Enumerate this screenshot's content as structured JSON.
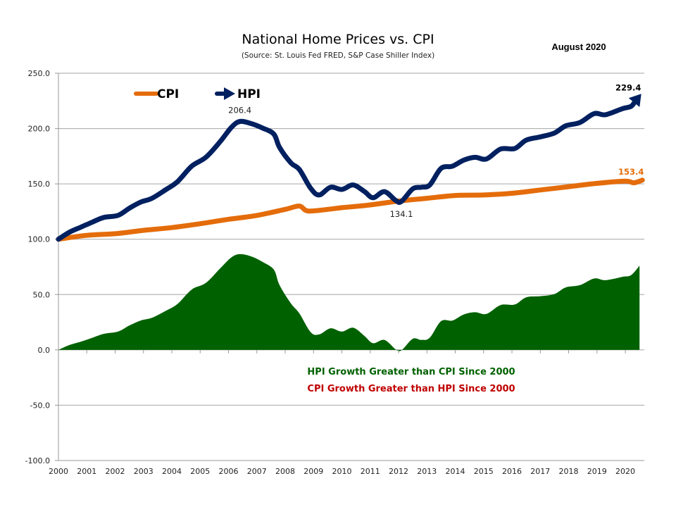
{
  "chart_data": {
    "type": "line",
    "title": "National Home Prices vs. CPI",
    "subtitle": "(Source: St. Louis Fed FRED, S&P Case Shiller Index)",
    "date_label": "August 2020",
    "xlabel": "",
    "ylabel": "",
    "ylim": [
      -100,
      250
    ],
    "xlim": [
      2000,
      2020.67
    ],
    "grid": true,
    "y_ticks": [
      250,
      200,
      150,
      100,
      50,
      0,
      -50,
      -100
    ],
    "y_tick_labels": [
      "250.0",
      "200.0",
      "150.0",
      "100.0",
      "50.0",
      "0.0",
      "-50.0",
      "-100.0"
    ],
    "x_tick_labels": [
      "2000",
      "2001",
      "2002",
      "2003",
      "2004",
      "2005",
      "2006",
      "2007",
      "2008",
      "2009",
      "2010",
      "2011",
      "2012",
      "2013",
      "2014",
      "2015",
      "2016",
      "2017",
      "2018",
      "2019",
      "2020"
    ],
    "legend": {
      "placement": "top-left",
      "entries": [
        {
          "name": "CPI",
          "color": "#E46C0A",
          "marker": "line"
        },
        {
          "name": "HPI",
          "color": "#002060",
          "marker": "arrow"
        }
      ]
    },
    "series": [
      {
        "name": "HPI",
        "color": "#002060",
        "type": "line",
        "x": [
          2000.0,
          2000.4,
          2000.8,
          2001.2,
          2001.6,
          2002.1,
          2002.5,
          2002.9,
          2003.3,
          2003.8,
          2004.2,
          2004.7,
          2005.2,
          2005.7,
          2006.1,
          2006.4,
          2006.8,
          2007.2,
          2007.6,
          2007.8,
          2008.2,
          2008.5,
          2008.9,
          2009.2,
          2009.6,
          2010.0,
          2010.4,
          2010.8,
          2011.1,
          2011.5,
          2011.9,
          2012.1,
          2012.5,
          2012.8,
          2013.1,
          2013.5,
          2013.9,
          2014.3,
          2014.7,
          2015.1,
          2015.6,
          2016.1,
          2016.5,
          2017.0,
          2017.5,
          2017.9,
          2018.4,
          2018.9,
          2019.3,
          2019.9,
          2020.2,
          2020.5
        ],
        "values": [
          100.0,
          106.5,
          111.0,
          115.5,
          119.7,
          121.5,
          128.0,
          133.5,
          137.0,
          145.0,
          152.0,
          166.0,
          174.0,
          188.0,
          201.0,
          206.4,
          204.5,
          200.5,
          195.0,
          183.0,
          169.0,
          163.0,
          146.0,
          140.0,
          147.0,
          145.0,
          149.0,
          143.0,
          137.5,
          143.0,
          135.0,
          134.1,
          145.5,
          147.0,
          149.0,
          164.0,
          166.0,
          171.5,
          174.0,
          172.5,
          181.5,
          182.0,
          189.5,
          192.5,
          196.0,
          202.5,
          205.5,
          213.5,
          212.5,
          218.0,
          220.0,
          229.4
        ]
      },
      {
        "name": "CPI",
        "color": "#E46C0A",
        "type": "line",
        "x": [
          2000.0,
          2001.0,
          2002.0,
          2003.0,
          2004.0,
          2005.0,
          2006.0,
          2007.0,
          2008.0,
          2008.5,
          2008.8,
          2009.5,
          2010.0,
          2011.0,
          2012.0,
          2013.0,
          2014.0,
          2015.0,
          2016.0,
          2017.0,
          2018.0,
          2019.0,
          2020.0,
          2020.3,
          2020.6
        ],
        "values": [
          100.0,
          103.5,
          105.0,
          108.0,
          110.5,
          114.0,
          118.0,
          121.5,
          127.0,
          130.0,
          125.5,
          127.0,
          128.5,
          131.0,
          134.5,
          137.0,
          139.5,
          140.0,
          141.5,
          144.5,
          147.5,
          150.5,
          152.5,
          151.0,
          153.4
        ]
      },
      {
        "name": "HPI Growth minus CPI Growth",
        "color": "#006100",
        "type": "area",
        "x": [
          2000.0,
          2000.4,
          2000.8,
          2001.2,
          2001.6,
          2002.1,
          2002.5,
          2002.9,
          2003.3,
          2003.8,
          2004.2,
          2004.7,
          2005.2,
          2005.7,
          2006.1,
          2006.4,
          2006.8,
          2007.2,
          2007.6,
          2007.8,
          2008.2,
          2008.5,
          2008.9,
          2009.2,
          2009.6,
          2010.0,
          2010.4,
          2010.8,
          2011.1,
          2011.5,
          2011.9,
          2012.1,
          2012.5,
          2012.8,
          2013.1,
          2013.5,
          2013.9,
          2014.3,
          2014.7,
          2015.1,
          2015.6,
          2016.1,
          2016.5,
          2017.0,
          2017.5,
          2017.9,
          2018.4,
          2018.9,
          2019.3,
          2019.9,
          2020.2,
          2020.5
        ],
        "values": [
          0.0,
          4.5,
          7.5,
          11.0,
          14.5,
          16.5,
          22.0,
          26.5,
          29.0,
          35.5,
          41.5,
          54.5,
          60.5,
          73.5,
          83.5,
          86.5,
          84.5,
          79.5,
          72.5,
          58.5,
          42.0,
          33.0,
          16.0,
          14.0,
          19.5,
          16.5,
          20.0,
          12.5,
          6.0,
          9.0,
          0.5,
          -0.4,
          10.0,
          9.0,
          11.0,
          26.0,
          26.5,
          32.0,
          34.0,
          32.5,
          40.5,
          41.0,
          47.5,
          48.5,
          50.5,
          56.5,
          58.5,
          64.5,
          63.0,
          66.0,
          67.5,
          76.0
        ]
      }
    ],
    "annotations": [
      {
        "text": "206.4",
        "series": "HPI",
        "x": 2006.4,
        "y": 206.4,
        "position": "above"
      },
      {
        "text": "134.1",
        "series": "HPI",
        "x": 2012.1,
        "y": 134.1,
        "position": "below"
      },
      {
        "text": "229.4",
        "series": "HPI",
        "x": 2020.5,
        "y": 229.4,
        "position": "above-left",
        "color": "#000000"
      },
      {
        "text": "153.4",
        "series": "CPI",
        "x": 2020.6,
        "y": 153.4,
        "position": "above-left",
        "color": "#E46C0A"
      }
    ],
    "notes": [
      {
        "text": "HPI Growth Greater than CPI Since 2000",
        "color": "#006100"
      },
      {
        "text": "CPI Growth Greater than HPI Since 2000",
        "color": "#C00000"
      }
    ]
  }
}
